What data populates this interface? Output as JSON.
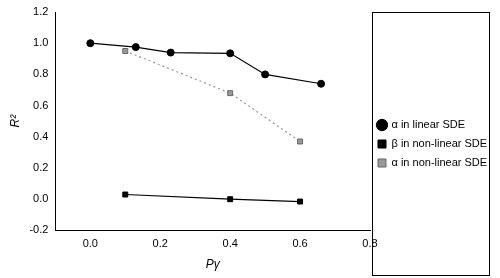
{
  "chart_data": {
    "type": "line",
    "x_label": "Pγ",
    "y_label": "R²",
    "xlim": [
      -0.1,
      0.8
    ],
    "xticks": [
      {
        "value": 0,
        "label": "0.0"
      },
      0.2,
      0.4,
      0.6,
      0.8
    ],
    "ylim": [
      -0.2,
      1.2
    ],
    "yticks": [
      -0.2,
      {
        "value": 0,
        "label": "0.0"
      },
      0.2,
      0.4,
      0.6,
      0.8,
      {
        "value": 1,
        "label": "1.0"
      },
      1.2
    ],
    "grid": false,
    "legend": "right",
    "series": [
      {
        "name": "α in linear SDE",
        "color": "#000000",
        "marker": "circle",
        "line_style": "solid",
        "x": [
          0.0,
          0.13,
          0.23,
          0.4,
          0.5,
          0.66
        ],
        "values": [
          1.0,
          0.975,
          0.94,
          0.935,
          0.8,
          0.74
        ]
      },
      {
        "name": "β in non-linear SDE",
        "color": "#000000",
        "marker": "square",
        "line_style": "solid",
        "x": [
          0.1,
          0.4,
          0.6
        ],
        "values": [
          0.03,
          0.0,
          -0.015
        ]
      },
      {
        "name": "α in non-linear SDE",
        "color": "#999999",
        "marker": "square",
        "line_style": "dotted",
        "x": [
          0.1,
          0.4,
          0.6
        ],
        "values": [
          0.95,
          0.68,
          0.37
        ]
      }
    ]
  }
}
